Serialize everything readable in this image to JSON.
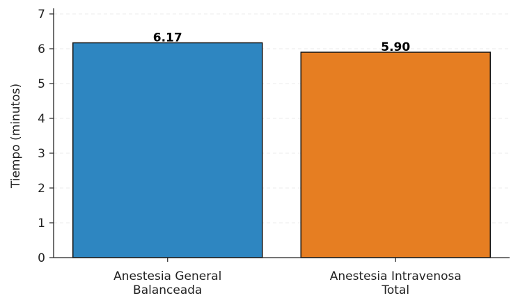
{
  "chart_data": {
    "type": "bar",
    "categories": [
      [
        "Anestesia General",
        "Balanceada"
      ],
      [
        "Anestesia Intravenosa",
        "Total"
      ]
    ],
    "values": [
      6.17,
      5.9
    ],
    "data_labels": [
      "6.17",
      "5.90"
    ],
    "colors": [
      "#2e86c1",
      "#e67e22"
    ],
    "ylabel": "Tiempo (minutos)",
    "ylim": [
      0,
      7
    ],
    "yticks": [
      "0",
      "1",
      "2",
      "3",
      "4",
      "5",
      "6",
      "7"
    ],
    "grid": true
  }
}
